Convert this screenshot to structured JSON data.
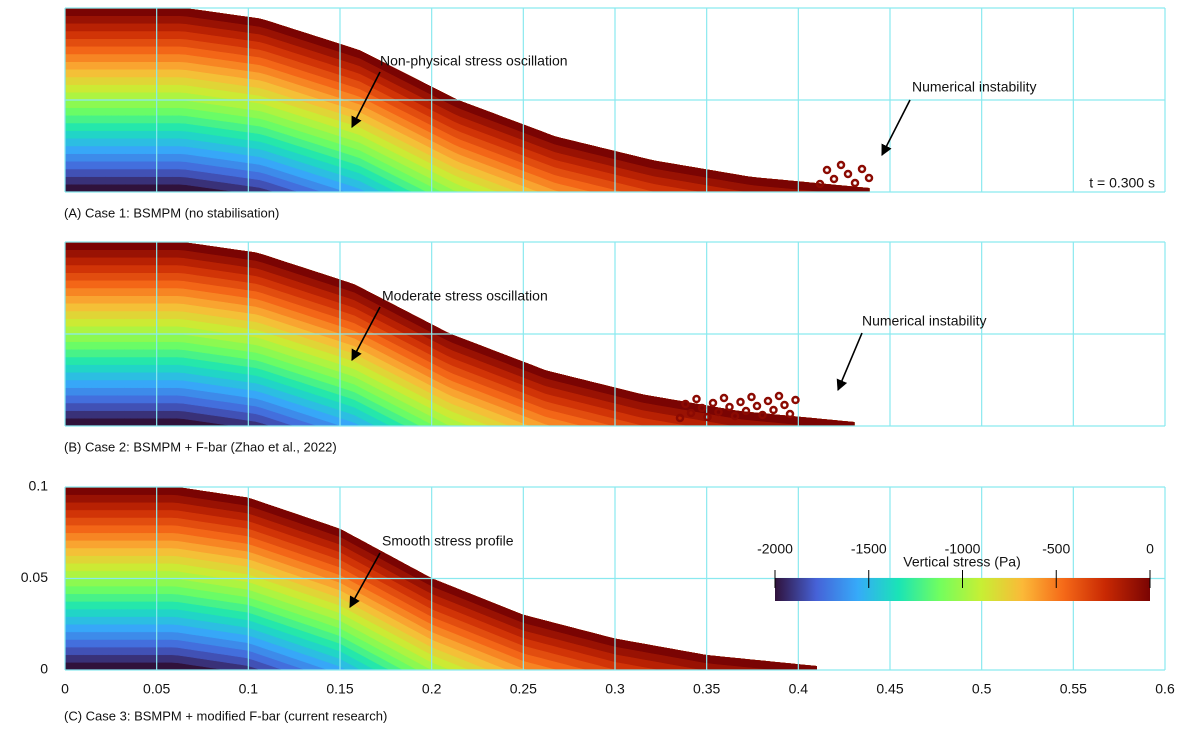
{
  "panels": [
    {
      "caption": "(A) Case 1: BSMPM (no stabilisation)",
      "annotations": [
        {
          "text": "Non-physical stress oscillation"
        },
        {
          "text": "Numerical instability"
        }
      ],
      "time_label": "t = 0.300 s"
    },
    {
      "caption": "(B) Case 2: BSMPM + F-bar (Zhao et al., 2022)",
      "annotations": [
        {
          "text": "Moderate stress oscillation"
        },
        {
          "text": "Numerical instability"
        }
      ]
    },
    {
      "caption": "(C) Case 3: BSMPM + modified F-bar (current research)",
      "annotations": [
        {
          "text": "Smooth stress profile"
        }
      ]
    }
  ],
  "axes": {
    "xlim": [
      0,
      0.6
    ],
    "ylim": [
      0,
      0.1
    ],
    "xticks": [
      0,
      0.05,
      0.1,
      0.15,
      0.2,
      0.25,
      0.3,
      0.35,
      0.4,
      0.45,
      0.5,
      0.55,
      0.6
    ],
    "yticks": [
      0,
      0.05,
      0.1
    ]
  },
  "colorbar": {
    "label": "Vertical stress (Pa)",
    "range": [
      -2000,
      0
    ],
    "ticks": [
      -2000,
      -1500,
      -1000,
      -500,
      0
    ]
  }
}
